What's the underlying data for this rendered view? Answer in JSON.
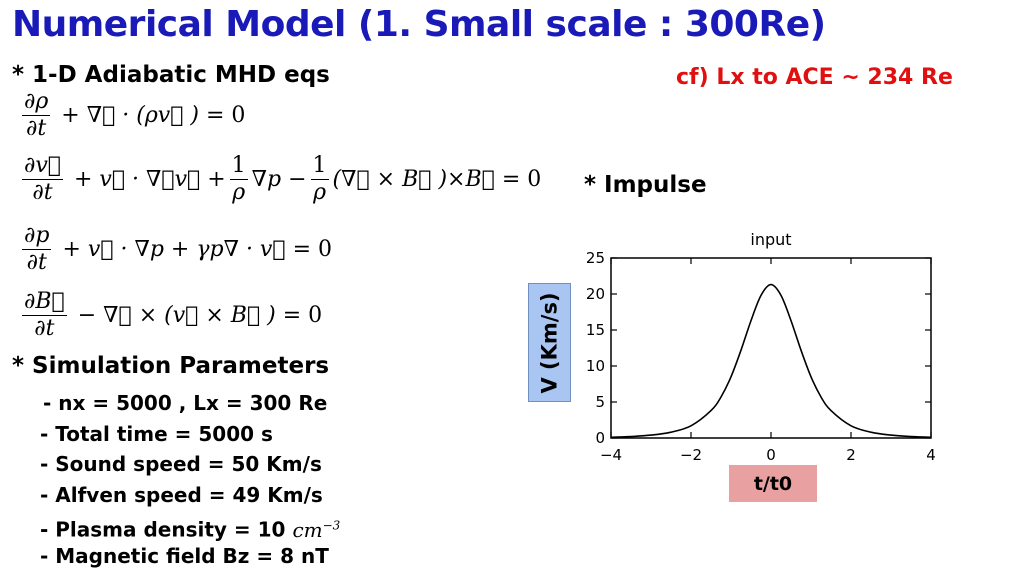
{
  "slide": {
    "title": "Numerical Model (1. Small scale : 300Re)",
    "heading_mhd": "* 1-D Adiabatic MHD eqs",
    "note_cf": "cf)  Lx to ACE ~ 234 Re",
    "heading_impulse": "* Impulse",
    "heading_params": "* Simulation Parameters",
    "params": [
      "- nx = 5000 , Lx = 300 Re",
      "- Total time = 5000 s",
      "- Sound speed = 50 Km/s",
      "- Alfven speed = 49 Km/s",
      "- Plasma density = 10",
      "- Magnetic field Bz = 8 nT"
    ],
    "density_unit": "cm",
    "density_exp": "−3"
  },
  "chart_data": {
    "type": "line",
    "title": "input",
    "xlabel": "t/t0",
    "ylabel": "V (Km/s)",
    "xlim": [
      -4,
      4
    ],
    "ylim": [
      0,
      25
    ],
    "xticks": [
      "−4",
      "−2",
      "0",
      "2",
      "4"
    ],
    "yticks": [
      "0",
      "5",
      "10",
      "15",
      "20",
      "25"
    ],
    "grid": false,
    "series": [
      {
        "x": [
          -4,
          -3.5,
          -3,
          -2.5,
          -2,
          -1.5,
          -1.25,
          -1,
          -0.75,
          -0.5,
          -0.25,
          0,
          0.25,
          0.5,
          0.75,
          1,
          1.25,
          1.5,
          2,
          2.5,
          3,
          3.5,
          4
        ],
        "y": [
          0.1,
          0.2,
          0.4,
          0.8,
          1.7,
          3.8,
          5.7,
          8.5,
          12.2,
          16.3,
          19.8,
          21.3,
          19.8,
          16.3,
          12.2,
          8.5,
          5.7,
          3.8,
          1.7,
          0.8,
          0.4,
          0.2,
          0.1
        ]
      }
    ]
  }
}
